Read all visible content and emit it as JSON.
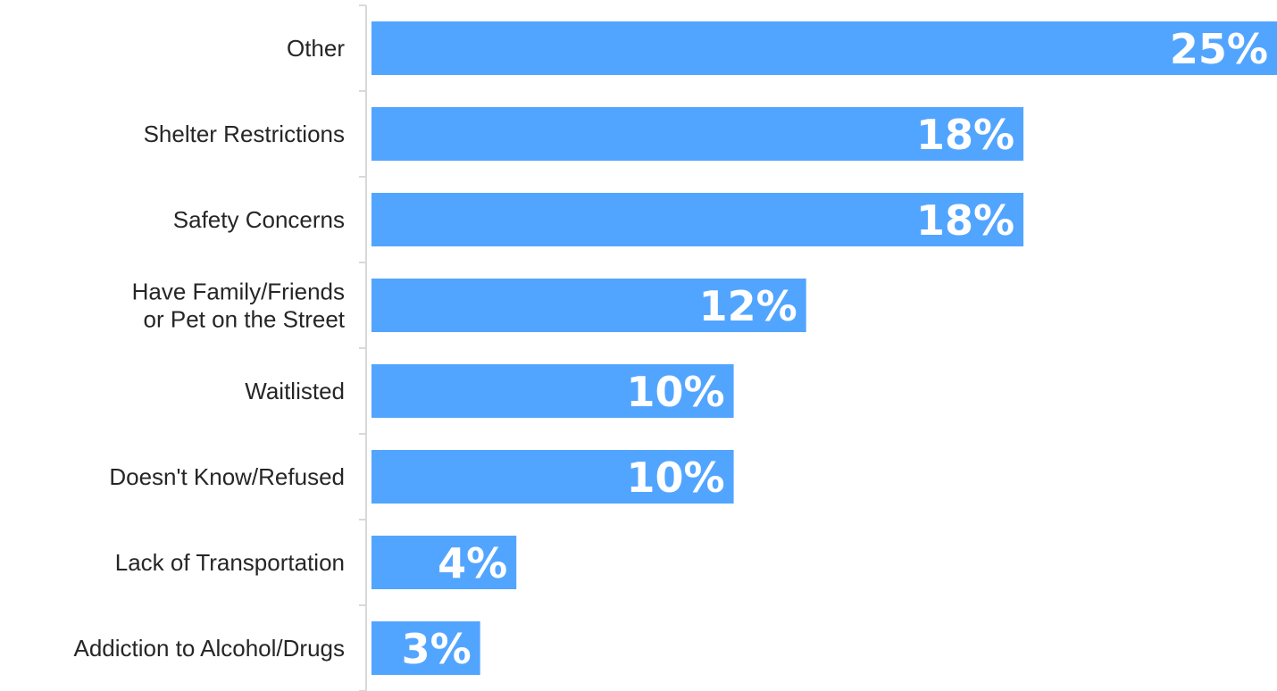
{
  "chart_data": {
    "type": "bar",
    "orientation": "horizontal",
    "title": "",
    "xlabel": "",
    "ylabel": "",
    "categories": [
      [
        "Other"
      ],
      [
        "Shelter Restrictions"
      ],
      [
        "Safety Concerns"
      ],
      [
        "Have Family/Friends",
        "or Pet on the Street"
      ],
      [
        "Waitlisted"
      ],
      [
        "Doesn't Know/Refused"
      ],
      [
        "Lack of Transportation"
      ],
      [
        "Addiction to Alcohol/Drugs"
      ]
    ],
    "values": [
      25,
      18,
      18,
      12,
      10,
      10,
      4,
      3
    ],
    "value_labels": [
      "25%",
      "18%",
      "18%",
      "12%",
      "10%",
      "10%",
      "4%",
      "3%"
    ],
    "xlim": [
      0,
      25
    ],
    "grid": false,
    "legend": "none",
    "bar_color": "#52a5ff",
    "axis_color": "#d9d9d9",
    "label_color": "#262626",
    "value_label_color": "#ffffff"
  }
}
